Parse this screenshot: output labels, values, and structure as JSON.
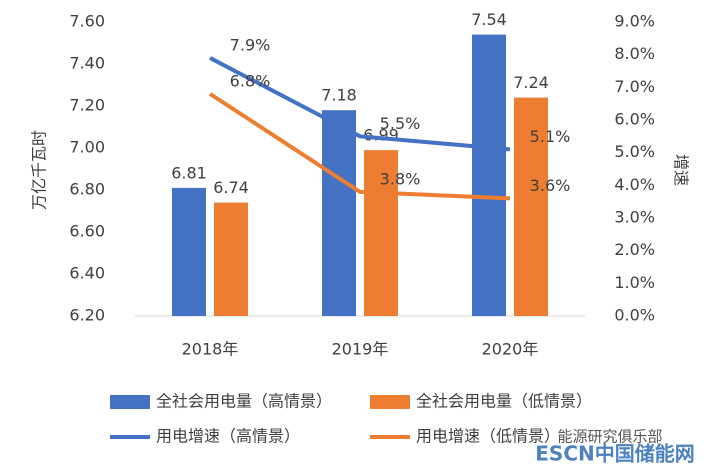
{
  "chart_data": {
    "type": "bar",
    "categories": [
      "2018年",
      "2019年",
      "2020年"
    ],
    "series": [
      {
        "name": "全社会用电量（高情景）",
        "color": "#4472c4",
        "type": "bar",
        "values": [
          6.81,
          7.18,
          7.54
        ]
      },
      {
        "name": "全社会用电量（低情景）",
        "color": "#ed7d31",
        "type": "bar",
        "values": [
          6.74,
          6.99,
          7.24
        ]
      },
      {
        "name": "用电增速（高情景）",
        "color": "#4472c4",
        "type": "line",
        "axis": "y2",
        "values": [
          7.9,
          5.5,
          5.1
        ],
        "value_labels": [
          "7.9%",
          "5.5%",
          "5.1%"
        ]
      },
      {
        "name": "用电增速（低情景）",
        "color": "#ed7d31",
        "type": "line",
        "axis": "y2",
        "values": [
          6.8,
          3.8,
          3.6
        ],
        "value_labels": [
          "6.8%",
          "3.8%",
          "3.6%"
        ]
      }
    ],
    "ylabel": "万亿千瓦时",
    "y2label": "增速",
    "ylim": [
      6.2,
      7.6
    ],
    "yticks": [
      {
        "value": 6.2,
        "label": "6.20"
      },
      {
        "value": 6.4,
        "label": "6.40"
      },
      {
        "value": 6.6,
        "label": "6.60"
      },
      {
        "value": 6.8,
        "label": "6.80"
      },
      {
        "value": 7.0,
        "label": "7.00"
      },
      {
        "value": 7.2,
        "label": "7.20"
      },
      {
        "value": 7.4,
        "label": "7.40"
      },
      {
        "value": 7.6,
        "label": "7.60"
      }
    ],
    "y2lim": [
      0,
      9
    ],
    "y2ticks": [
      {
        "value": 0,
        "label": "0.0%"
      },
      {
        "value": 1,
        "label": "1.0%"
      },
      {
        "value": 2,
        "label": "2.0%"
      },
      {
        "value": 3,
        "label": "3.0%"
      },
      {
        "value": 4,
        "label": "4.0%"
      },
      {
        "value": 5,
        "label": "5.0%"
      },
      {
        "value": 6,
        "label": "6.0%"
      },
      {
        "value": 7,
        "label": "7.0%"
      },
      {
        "value": 8,
        "label": "8.0%"
      },
      {
        "value": 9,
        "label": "9.0%"
      }
    ],
    "grid": false,
    "legend": "bottom",
    "annotations": [
      "能源研究俱乐部",
      "ESCN中国储能网"
    ]
  }
}
